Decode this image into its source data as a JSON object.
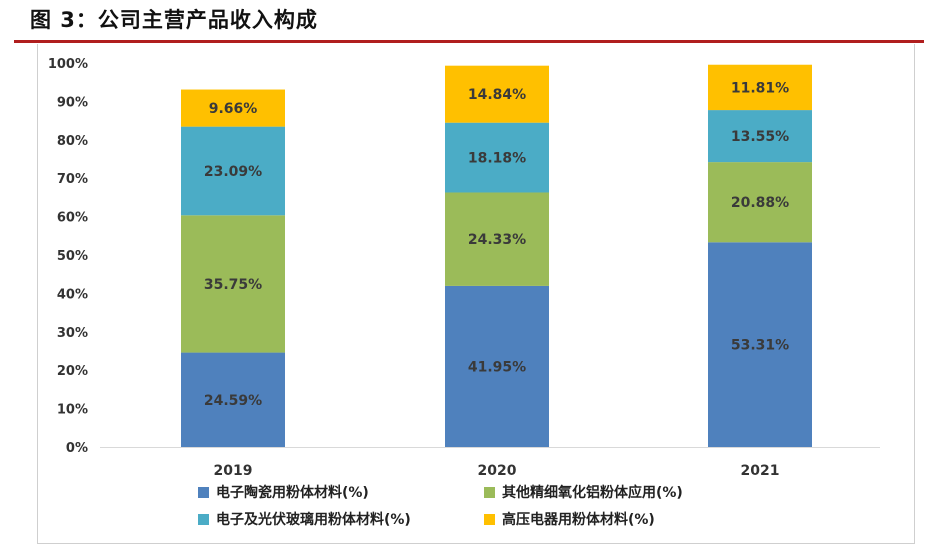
{
  "figure": {
    "title": "图 3：公司主营产品收入构成"
  },
  "chart_data": {
    "type": "bar",
    "stacked": true,
    "categories": [
      "2019",
      "2020",
      "2021"
    ],
    "y_ticks": [
      "0%",
      "10%",
      "20%",
      "30%",
      "40%",
      "50%",
      "60%",
      "70%",
      "80%",
      "90%",
      "100%"
    ],
    "ylim": [
      0,
      100
    ],
    "grid": false,
    "legend_position": "bottom",
    "series": [
      {
        "name": "电子陶瓷用粉体材料(%)",
        "color": "#4f81bd",
        "values": [
          24.59,
          41.95,
          53.31
        ],
        "labels": [
          "24.59%",
          "41.95%",
          "53.31%"
        ]
      },
      {
        "name": "其他精细氧化铝粉体应用(%)",
        "color": "#9bbb59",
        "values": [
          35.75,
          24.33,
          20.88
        ],
        "labels": [
          "35.75%",
          "24.33%",
          "20.88%"
        ]
      },
      {
        "name": "电子及光伏玻璃用粉体材料(%)",
        "color": "#4bacc6",
        "values": [
          23.09,
          18.18,
          13.55
        ],
        "labels": [
          "23.09%",
          "18.18%",
          "13.55%"
        ]
      },
      {
        "name": "高压电器用粉体材料(%)",
        "color": "#ffc000",
        "values": [
          9.66,
          14.84,
          11.81
        ],
        "labels": [
          "9.66%",
          "14.84%",
          "11.81%"
        ]
      }
    ]
  }
}
